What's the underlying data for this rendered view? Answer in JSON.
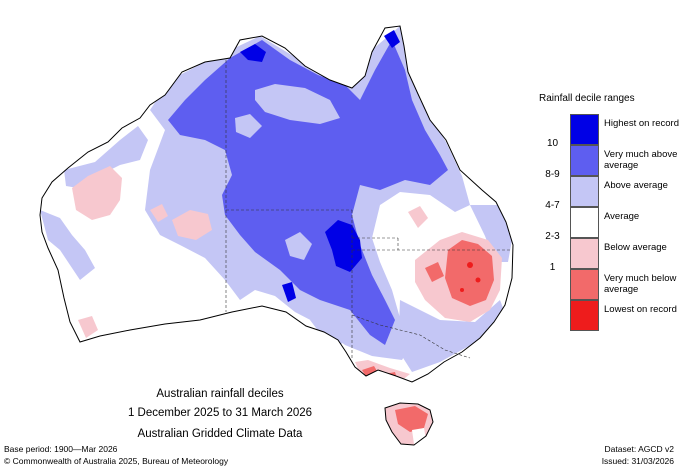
{
  "legend": {
    "title": "Rainfall decile ranges",
    "items": [
      {
        "range": "",
        "label": "Highest on record",
        "color": "#0000e6"
      },
      {
        "range": "10",
        "label": "Very much above average",
        "color": "#5e5ef0"
      },
      {
        "range": "8-9",
        "label": "Above average",
        "color": "#c4c6f5"
      },
      {
        "range": "4-7",
        "label": "Average",
        "color": "#ffffff"
      },
      {
        "range": "2-3",
        "label": "Below average",
        "color": "#f7c8cf"
      },
      {
        "range": "1",
        "label": "Very much below average",
        "color": "#f26a6a"
      },
      {
        "range": "",
        "label": "Lowest on record",
        "color": "#ee1c1c"
      }
    ]
  },
  "caption": {
    "line1": "Australian rainfall deciles",
    "line2": "1 December 2025 to 31 March 2026",
    "line3": "Australian Gridded Climate Data"
  },
  "footer": {
    "base_period": "Base period: 1900—Mar 2026",
    "dataset": "Dataset: AGCD v2",
    "copyright": "© Commonwealth of Australia 2025, Bureau of Meteorology",
    "issued": "Issued: 31/03/2026"
  }
}
